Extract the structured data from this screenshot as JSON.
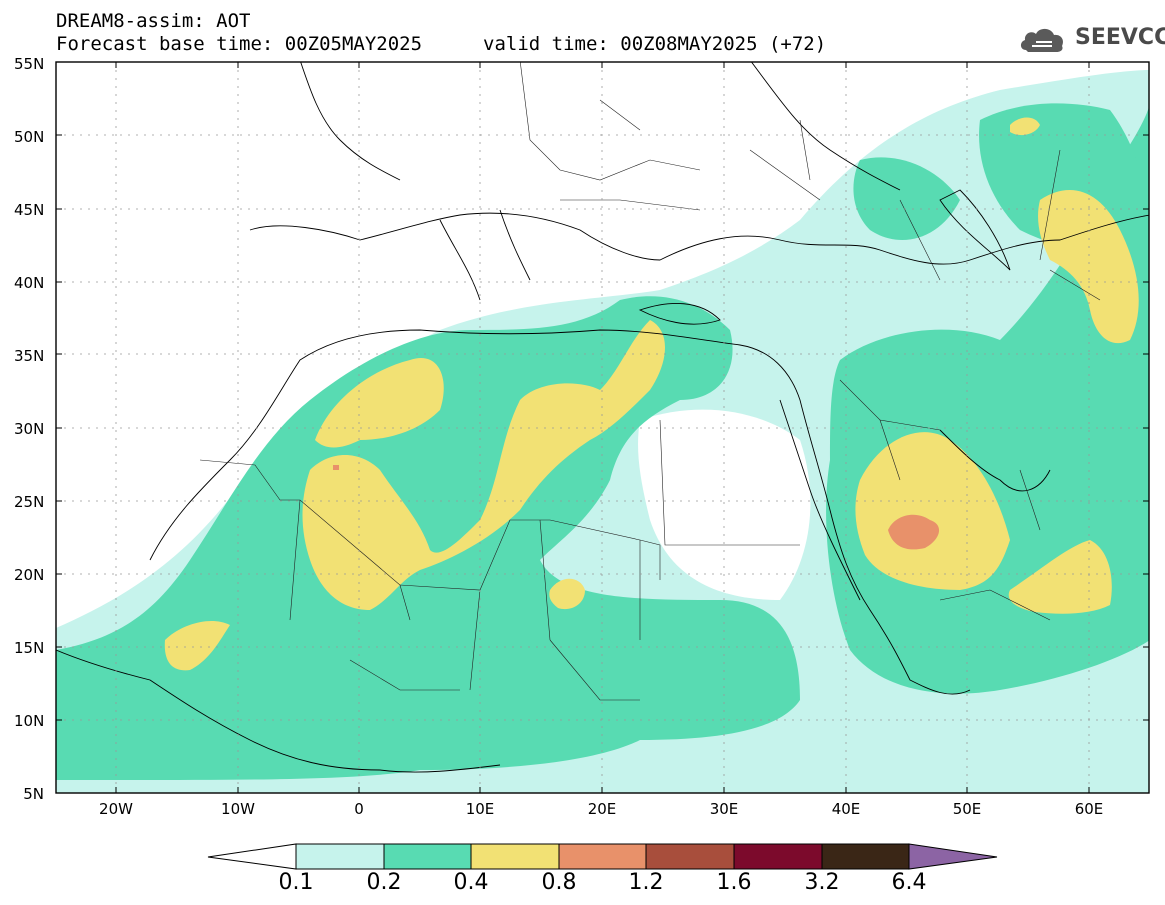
{
  "header": {
    "title_line1": "DREAM8-assim: AOT",
    "title_line2": "Forecast base time: 00Z05MAY2025",
    "valid_time": "valid time: 00Z08MAY2025 (+72)"
  },
  "logo": {
    "text": "SEEVCCC",
    "icon": "cloud-icon"
  },
  "map": {
    "lat_labels": [
      "55N",
      "50N",
      "45N",
      "40N",
      "35N",
      "30N",
      "25N",
      "20N",
      "15N",
      "10N",
      "5N"
    ],
    "lon_labels": [
      "20W",
      "10W",
      "0",
      "10E",
      "20E",
      "30E",
      "40E",
      "50E",
      "60E"
    ],
    "gridlines": true
  },
  "colorbar": {
    "labels": [
      "0.1",
      "0.2",
      "0.4",
      "0.8",
      "1.2",
      "1.6",
      "3.2",
      "6.4"
    ],
    "colors": [
      "#ffffff",
      "#c6f3ec",
      "#58dbb2",
      "#f2e174",
      "#e8916a",
      "#a84e3c",
      "#7c0a2c",
      "#3a2616",
      "#8c64a4"
    ]
  }
}
